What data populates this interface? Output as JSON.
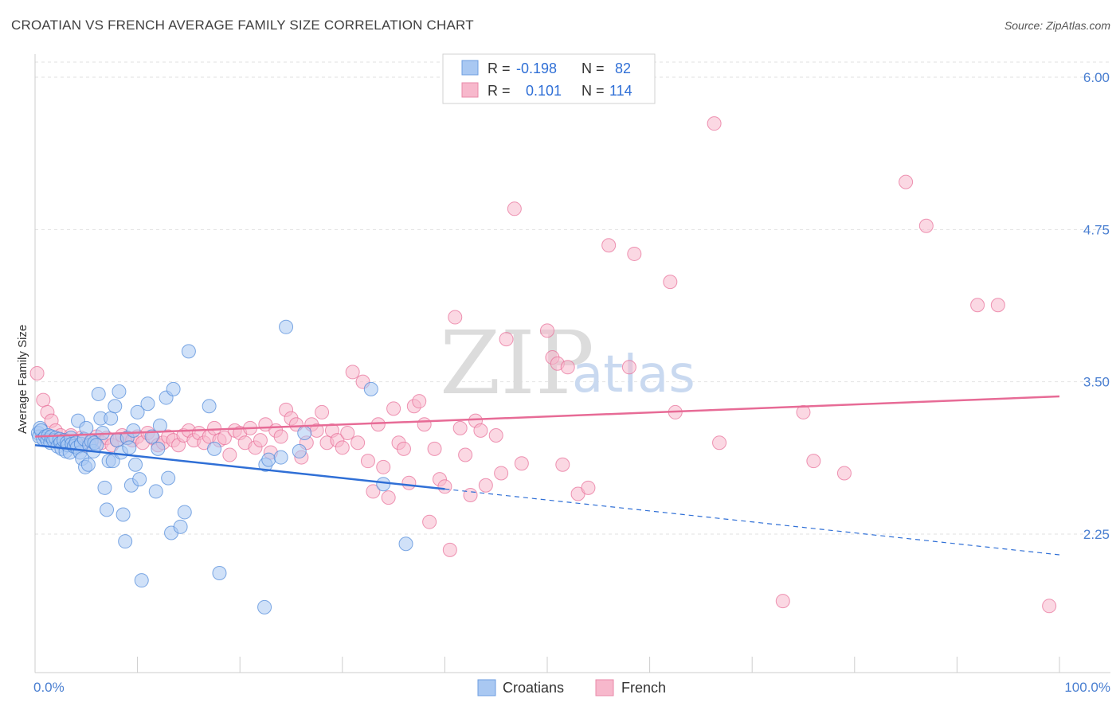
{
  "header": {
    "title": "CROATIAN VS FRENCH AVERAGE FAMILY SIZE CORRELATION CHART",
    "source": "Source: ZipAtlas.com"
  },
  "watermark": {
    "zip": "ZIP",
    "atlas": "atlas"
  },
  "legend": {
    "rows": [
      {
        "r_label": "R =",
        "r_value": "-0.198",
        "n_label": "N =",
        "n_value": "82",
        "color": "#a9c8f2"
      },
      {
        "r_label": "R =",
        "r_value": "0.101",
        "n_label": "N =",
        "n_value": "114",
        "color": "#f7b8cc"
      }
    ]
  },
  "chart_data": {
    "type": "scatter",
    "title": "CROATIAN VS FRENCH AVERAGE FAMILY SIZE CORRELATION CHART",
    "xlabel": "",
    "ylabel": "Average Family Size",
    "xlim": [
      0,
      100
    ],
    "ylim": [
      1.2,
      6.1
    ],
    "x_tick_labels": [
      "0.0%",
      "100.0%"
    ],
    "y_ticks": [
      2.25,
      3.5,
      4.75,
      6.0
    ],
    "y_tick_labels": [
      "2.25",
      "3.50",
      "4.75",
      "6.00"
    ],
    "grid": true,
    "legend_position": "bottom",
    "series": [
      {
        "name": "Croatians",
        "color": "#4a86d8",
        "fill": "#a9c8f2",
        "r": -0.198,
        "n": 82,
        "trend": {
          "x0": 0,
          "y0": 2.98,
          "x1": 40,
          "y1": 2.62,
          "x_end": 100,
          "y_end": 2.08
        },
        "points": [
          [
            0.3,
            3.08
          ],
          [
            0.4,
            3.05
          ],
          [
            0.5,
            3.12
          ],
          [
            0.6,
            3.1
          ],
          [
            0.8,
            3.03
          ],
          [
            1.0,
            3.05
          ],
          [
            1.2,
            3.02
          ],
          [
            1.3,
            3.06
          ],
          [
            1.5,
            3.0
          ],
          [
            1.6,
            3.05
          ],
          [
            1.8,
            3.02
          ],
          [
            2.0,
            3.04
          ],
          [
            2.2,
            2.97
          ],
          [
            2.4,
            3.03
          ],
          [
            2.5,
            3.0
          ],
          [
            2.6,
            2.95
          ],
          [
            2.8,
            3.02
          ],
          [
            3.0,
            2.93
          ],
          [
            3.1,
            3.0
          ],
          [
            3.2,
            2.98
          ],
          [
            3.4,
            2.92
          ],
          [
            3.5,
            3.04
          ],
          [
            3.6,
            2.99
          ],
          [
            3.8,
            2.97
          ],
          [
            4.0,
            3.0
          ],
          [
            4.1,
            2.96
          ],
          [
            4.2,
            3.18
          ],
          [
            4.4,
            2.92
          ],
          [
            4.5,
            2.99
          ],
          [
            4.6,
            2.87
          ],
          [
            4.8,
            3.03
          ],
          [
            4.9,
            2.8
          ],
          [
            5.0,
            3.12
          ],
          [
            5.2,
            2.82
          ],
          [
            5.3,
            2.98
          ],
          [
            5.5,
            3.01
          ],
          [
            5.7,
            2.93
          ],
          [
            5.8,
            3.0
          ],
          [
            6.0,
            2.98
          ],
          [
            6.2,
            3.4
          ],
          [
            6.4,
            3.2
          ],
          [
            6.6,
            3.08
          ],
          [
            6.8,
            2.63
          ],
          [
            7.0,
            2.45
          ],
          [
            7.2,
            2.85
          ],
          [
            7.4,
            3.2
          ],
          [
            7.6,
            2.85
          ],
          [
            7.8,
            3.3
          ],
          [
            8.0,
            3.02
          ],
          [
            8.2,
            3.42
          ],
          [
            8.4,
            2.92
          ],
          [
            8.6,
            2.41
          ],
          [
            8.8,
            2.19
          ],
          [
            9.0,
            3.04
          ],
          [
            9.2,
            2.96
          ],
          [
            9.4,
            2.65
          ],
          [
            9.6,
            3.1
          ],
          [
            9.8,
            2.82
          ],
          [
            10.0,
            3.25
          ],
          [
            10.2,
            2.7
          ],
          [
            10.4,
            1.87
          ],
          [
            11.0,
            3.32
          ],
          [
            11.4,
            3.05
          ],
          [
            11.8,
            2.6
          ],
          [
            12.0,
            2.95
          ],
          [
            12.2,
            3.14
          ],
          [
            12.8,
            3.37
          ],
          [
            13.0,
            2.71
          ],
          [
            13.3,
            2.26
          ],
          [
            13.5,
            3.44
          ],
          [
            14.2,
            2.31
          ],
          [
            14.6,
            2.43
          ],
          [
            15.0,
            3.75
          ],
          [
            17.0,
            3.3
          ],
          [
            17.5,
            2.95
          ],
          [
            18.0,
            1.93
          ],
          [
            22.4,
            1.65
          ],
          [
            22.5,
            2.82
          ],
          [
            22.8,
            2.86
          ],
          [
            24.0,
            2.88
          ],
          [
            24.5,
            3.95
          ],
          [
            25.8,
            2.93
          ],
          [
            26.3,
            3.08
          ],
          [
            32.8,
            3.44
          ],
          [
            34.0,
            2.66
          ],
          [
            36.2,
            2.17
          ]
        ]
      },
      {
        "name": "French",
        "color": "#e76b96",
        "fill": "#f7b8cc",
        "r": 0.101,
        "n": 114,
        "trend": {
          "x0": 0,
          "y0": 3.05,
          "x1": 100,
          "y1": 3.38
        },
        "points": [
          [
            0.2,
            3.57
          ],
          [
            0.8,
            3.35
          ],
          [
            1.2,
            3.25
          ],
          [
            1.6,
            3.18
          ],
          [
            2.0,
            3.1
          ],
          [
            2.5,
            3.06
          ],
          [
            3.0,
            3.02
          ],
          [
            3.5,
            3.06
          ],
          [
            4.0,
            3.0
          ],
          [
            4.5,
            3.04
          ],
          [
            5.0,
            2.98
          ],
          [
            5.5,
            3.02
          ],
          [
            6.0,
            3.05
          ],
          [
            6.5,
            3.0
          ],
          [
            7.0,
            3.04
          ],
          [
            7.5,
            2.98
          ],
          [
            8.0,
            3.02
          ],
          [
            8.5,
            3.06
          ],
          [
            9.0,
            3.04
          ],
          [
            9.5,
            3.02
          ],
          [
            10.0,
            3.05
          ],
          [
            10.5,
            3.0
          ],
          [
            11.0,
            3.08
          ],
          [
            11.5,
            3.04
          ],
          [
            12.0,
            2.98
          ],
          [
            12.5,
            3.0
          ],
          [
            13.0,
            3.05
          ],
          [
            13.5,
            3.02
          ],
          [
            14.0,
            2.98
          ],
          [
            14.5,
            3.06
          ],
          [
            15.0,
            3.1
          ],
          [
            15.5,
            3.02
          ],
          [
            16.0,
            3.08
          ],
          [
            16.5,
            3.0
          ],
          [
            17.0,
            3.05
          ],
          [
            17.5,
            3.12
          ],
          [
            18.0,
            3.02
          ],
          [
            18.5,
            3.04
          ],
          [
            19.0,
            2.9
          ],
          [
            19.5,
            3.1
          ],
          [
            20.0,
            3.08
          ],
          [
            20.5,
            3.0
          ],
          [
            21.0,
            3.12
          ],
          [
            21.5,
            2.96
          ],
          [
            22.0,
            3.02
          ],
          [
            22.5,
            3.15
          ],
          [
            23.0,
            2.92
          ],
          [
            23.5,
            3.1
          ],
          [
            24.0,
            3.05
          ],
          [
            24.5,
            3.27
          ],
          [
            25.0,
            3.2
          ],
          [
            25.5,
            3.15
          ],
          [
            26.0,
            2.88
          ],
          [
            26.5,
            3.0
          ],
          [
            27.0,
            3.15
          ],
          [
            27.5,
            3.1
          ],
          [
            28.0,
            3.25
          ],
          [
            28.5,
            3.0
          ],
          [
            29.0,
            3.1
          ],
          [
            29.5,
            3.02
          ],
          [
            30.0,
            2.96
          ],
          [
            30.5,
            3.08
          ],
          [
            31.0,
            3.58
          ],
          [
            31.5,
            3.0
          ],
          [
            32.0,
            3.5
          ],
          [
            32.5,
            2.85
          ],
          [
            33.0,
            2.6
          ],
          [
            33.5,
            3.15
          ],
          [
            34.0,
            2.8
          ],
          [
            34.5,
            2.55
          ],
          [
            35.0,
            3.28
          ],
          [
            35.5,
            3.0
          ],
          [
            36.0,
            2.95
          ],
          [
            36.5,
            2.67
          ],
          [
            37.0,
            3.3
          ],
          [
            37.5,
            3.34
          ],
          [
            38.0,
            3.15
          ],
          [
            38.5,
            2.35
          ],
          [
            39.0,
            2.95
          ],
          [
            39.5,
            2.7
          ],
          [
            40.0,
            2.64
          ],
          [
            40.5,
            2.12
          ],
          [
            41.0,
            4.03
          ],
          [
            41.5,
            3.12
          ],
          [
            42.0,
            2.9
          ],
          [
            42.5,
            2.57
          ],
          [
            43.0,
            3.18
          ],
          [
            43.5,
            3.1
          ],
          [
            44.0,
            2.65
          ],
          [
            45.0,
            3.06
          ],
          [
            45.5,
            2.75
          ],
          [
            46.0,
            3.85
          ],
          [
            46.8,
            4.92
          ],
          [
            47.5,
            2.83
          ],
          [
            50.0,
            3.92
          ],
          [
            50.5,
            3.7
          ],
          [
            51.0,
            3.65
          ],
          [
            51.5,
            2.82
          ],
          [
            52.0,
            3.62
          ],
          [
            53.0,
            2.58
          ],
          [
            54.0,
            2.63
          ],
          [
            56.0,
            4.62
          ],
          [
            58.0,
            3.62
          ],
          [
            58.5,
            4.55
          ],
          [
            62.0,
            4.32
          ],
          [
            62.5,
            3.25
          ],
          [
            66.3,
            5.62
          ],
          [
            66.8,
            3.0
          ],
          [
            73.0,
            1.7
          ],
          [
            75.0,
            3.25
          ],
          [
            76.0,
            2.85
          ],
          [
            79.0,
            2.75
          ],
          [
            85.0,
            5.14
          ],
          [
            87.0,
            4.78
          ],
          [
            92.0,
            4.13
          ],
          [
            94.0,
            4.13
          ],
          [
            99.0,
            1.66
          ]
        ]
      }
    ]
  },
  "bottom_legend": {
    "items": [
      {
        "label": "Croatians",
        "color": "#a9c8f2"
      },
      {
        "label": "French",
        "color": "#f7b8cc"
      }
    ]
  }
}
